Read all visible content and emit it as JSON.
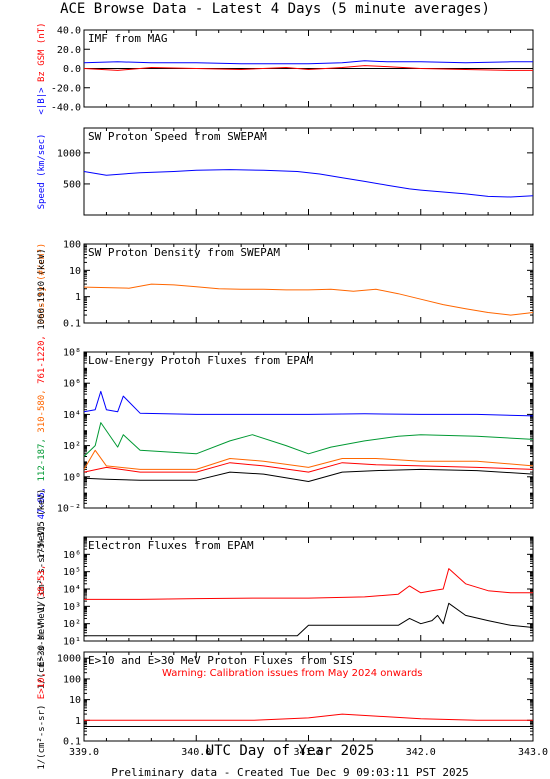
{
  "main_title": "ACE Browse Data - Latest 4 Days (5 minute averages)",
  "x_axis": {
    "title": "UTC Day of Year 2025",
    "ticks": [
      "339.0",
      "340.0",
      "341.0",
      "342.0",
      "343.0"
    ],
    "range": [
      339.0,
      343.0
    ]
  },
  "footer": "Preliminary data - Created Tue Dec  9 09:03:11 PST 2025",
  "warning": "Warning: Calibration issues from May 2024 onwards",
  "colors": {
    "blue": "#0000ff",
    "red": "#ff0000",
    "orange": "#ff6600",
    "green": "#009933",
    "black": "#000000"
  },
  "chart_data": [
    {
      "type": "line",
      "title": "IMF from MAG",
      "ylabel_parts": [
        {
          "text": "<|B|>",
          "color": "#0000ff"
        },
        {
          "text": "Bz GSM (nT)",
          "color": "#ff0000"
        }
      ],
      "yscale": "linear",
      "ylim": [
        -40,
        40
      ],
      "yticks": [
        "40.0",
        "20.0",
        "0.0",
        "-20.0",
        "-40.0"
      ],
      "zero_line": true,
      "series": [
        {
          "color": "#0000ff",
          "x": [
            339.0,
            339.3,
            339.6,
            340.0,
            340.4,
            340.8,
            341.0,
            341.3,
            341.5,
            341.7,
            342.0,
            342.4,
            342.8,
            343.0
          ],
          "y": [
            6,
            7,
            6,
            6,
            5,
            5,
            5,
            6,
            8,
            7,
            7,
            6,
            7,
            7
          ]
        },
        {
          "color": "#ff0000",
          "x": [
            339.0,
            339.3,
            339.6,
            340.0,
            340.4,
            340.8,
            341.0,
            341.3,
            341.5,
            341.7,
            342.0,
            342.4,
            342.8,
            343.0
          ],
          "y": [
            0,
            -2,
            1,
            0,
            -1,
            1,
            -1,
            1,
            3,
            2,
            0,
            -1,
            -2,
            -2
          ]
        }
      ]
    },
    {
      "type": "line",
      "title": "SW Proton Speed from SWEPAM",
      "ylabel_parts": [
        {
          "text": "Speed (km/sec)",
          "color": "#0000ff"
        }
      ],
      "yscale": "linear",
      "ylim": [
        0,
        1400
      ],
      "yticks": [
        "1000",
        "500"
      ],
      "series": [
        {
          "color": "#0000ff",
          "x": [
            339.0,
            339.2,
            339.5,
            339.8,
            340.0,
            340.3,
            340.6,
            340.9,
            341.1,
            341.3,
            341.5,
            341.7,
            341.9,
            342.0,
            342.2,
            342.4,
            342.6,
            342.8,
            343.0
          ],
          "y": [
            700,
            640,
            680,
            700,
            720,
            730,
            720,
            700,
            660,
            600,
            540,
            480,
            420,
            400,
            370,
            340,
            300,
            290,
            310
          ]
        }
      ]
    },
    {
      "type": "line",
      "title": "SW Proton Density from SWEPAM",
      "ylabel_parts": [
        {
          "text": "Density (#/cm³)",
          "color": "#ff6600"
        }
      ],
      "yscale": "log",
      "ylim": [
        0.1,
        100
      ],
      "yticks": [
        "100",
        "10",
        "1",
        "0.1"
      ],
      "series": [
        {
          "color": "#ff6600",
          "x": [
            339.0,
            339.2,
            339.4,
            339.6,
            339.8,
            340.0,
            340.2,
            340.4,
            340.6,
            340.8,
            341.0,
            341.2,
            341.4,
            341.6,
            341.8,
            342.0,
            342.2,
            342.4,
            342.6,
            342.8,
            343.0
          ],
          "y": [
            2.3,
            2.2,
            2.1,
            3.0,
            2.8,
            2.4,
            2.0,
            1.9,
            1.9,
            1.8,
            1.8,
            1.9,
            1.6,
            1.9,
            1.3,
            0.8,
            0.5,
            0.35,
            0.25,
            0.2,
            0.25
          ]
        }
      ]
    },
    {
      "type": "line",
      "title": "Low-Energy Proton Fluxes from EPAM",
      "ylabel_parts": [
        {
          "text": "1/(cm²-s-sr-MeV)",
          "color": "#000000"
        },
        {
          "text": "47-65,",
          "color": "#0000ff"
        },
        {
          "text": "112-187,",
          "color": "#009933"
        },
        {
          "text": "310-580,",
          "color": "#ff6600"
        },
        {
          "text": "761-1220,",
          "color": "#ff0000"
        },
        {
          "text": "1060-1910 (keV)",
          "color": "#000000"
        }
      ],
      "yscale": "log",
      "ylim": [
        0.01,
        100000000
      ],
      "yticks": [
        "10⁸",
        "10⁶",
        "10⁴",
        "10²",
        "10⁰",
        "10⁻²"
      ],
      "series": [
        {
          "color": "#0000ff",
          "x": [
            339.0,
            339.1,
            339.15,
            339.2,
            339.3,
            339.35,
            339.5,
            340.0,
            340.5,
            340.8,
            341.0,
            341.5,
            342.0,
            342.5,
            343.0
          ],
          "y": [
            15000,
            20000,
            300000,
            20000,
            15000,
            150000,
            12000,
            10000,
            10000,
            10000,
            10000,
            11000,
            10000,
            10000,
            8000
          ]
        },
        {
          "color": "#009933",
          "x": [
            339.0,
            339.1,
            339.15,
            339.3,
            339.35,
            339.5,
            340.0,
            340.3,
            340.5,
            340.8,
            341.0,
            341.2,
            341.5,
            341.8,
            342.0,
            342.5,
            343.0
          ],
          "y": [
            20,
            100,
            3000,
            80,
            500,
            50,
            30,
            200,
            500,
            100,
            30,
            80,
            200,
            400,
            500,
            400,
            250
          ]
        },
        {
          "color": "#ff6600",
          "x": [
            339.0,
            339.1,
            339.2,
            339.5,
            340.0,
            340.3,
            340.6,
            341.0,
            341.3,
            341.6,
            342.0,
            342.5,
            343.0
          ],
          "y": [
            3,
            50,
            5,
            3,
            3,
            15,
            10,
            4,
            15,
            15,
            10,
            10,
            5
          ]
        },
        {
          "color": "#ff0000",
          "x": [
            339.0,
            339.2,
            339.5,
            340.0,
            340.3,
            340.6,
            341.0,
            341.3,
            341.6,
            342.0,
            342.5,
            343.0
          ],
          "y": [
            2,
            4,
            2,
            2,
            8,
            5,
            2,
            8,
            6,
            5,
            4,
            3
          ]
        },
        {
          "color": "#000000",
          "x": [
            339.0,
            339.2,
            339.5,
            340.0,
            340.3,
            340.6,
            341.0,
            341.3,
            341.6,
            342.0,
            342.5,
            343.0
          ],
          "y": [
            0.8,
            0.7,
            0.6,
            0.6,
            2,
            1.5,
            0.5,
            2,
            2.5,
            3,
            2.5,
            1.5
          ]
        }
      ]
    },
    {
      "type": "line",
      "title": "Electron Fluxes from EPAM",
      "ylabel_parts": [
        {
          "text": "1/(cm²-s-sr-MeV)",
          "color": "#000000"
        },
        {
          "text": "38-53,",
          "color": "#ff0000"
        },
        {
          "text": "175-315 (keV)",
          "color": "#000000"
        }
      ],
      "yscale": "log",
      "ylim": [
        10,
        10000000
      ],
      "yticks": [
        "10⁶",
        "10⁵",
        "10⁴",
        "10³",
        "10²",
        "10¹"
      ],
      "series": [
        {
          "color": "#ff0000",
          "x": [
            339.0,
            339.5,
            340.0,
            340.5,
            341.0,
            341.5,
            341.8,
            341.9,
            342.0,
            342.1,
            342.2,
            342.25,
            342.4,
            342.6,
            342.8,
            343.0
          ],
          "y": [
            2500,
            2500,
            2800,
            3000,
            3000,
            3500,
            5000,
            15000,
            6000,
            8000,
            10000,
            150000,
            20000,
            8000,
            6000,
            6000
          ]
        },
        {
          "color": "#000000",
          "x": [
            339.0,
            339.5,
            340.0,
            340.5,
            340.9,
            341.0,
            341.5,
            341.8,
            341.9,
            342.0,
            342.1,
            342.15,
            342.2,
            342.25,
            342.4,
            342.6,
            342.8,
            343.0
          ],
          "y": [
            20,
            20,
            20,
            20,
            20,
            80,
            80,
            80,
            200,
            100,
            150,
            300,
            100,
            1500,
            300,
            150,
            80,
            60
          ]
        }
      ]
    },
    {
      "type": "line",
      "title": "E>10 and E>30 MeV Proton Fluxes from SIS",
      "ylabel_parts": [
        {
          "text": "1/(cm²-s-sr)",
          "color": "#000000"
        },
        {
          "text": "E>10,",
          "color": "#ff0000"
        },
        {
          "text": "E>30 MeV",
          "color": "#000000"
        }
      ],
      "yscale": "log",
      "ylim": [
        0.1,
        2000
      ],
      "yticks": [
        "1000",
        "100",
        "10",
        "1",
        "0.1"
      ],
      "series": [
        {
          "color": "#ff0000",
          "x": [
            339.0,
            339.5,
            340.0,
            340.5,
            341.0,
            341.3,
            341.6,
            342.0,
            342.5,
            343.0
          ],
          "y": [
            1.0,
            1.0,
            1.0,
            1.0,
            1.3,
            2.0,
            1.6,
            1.2,
            1.0,
            1.0
          ]
        },
        {
          "color": "#000000",
          "x": [
            339.0,
            339.5,
            340.0,
            340.5,
            341.0,
            341.5,
            342.0,
            342.5,
            343.0
          ],
          "y": [
            0.5,
            0.5,
            0.5,
            0.5,
            0.5,
            0.5,
            0.5,
            0.5,
            0.5
          ]
        }
      ]
    }
  ]
}
